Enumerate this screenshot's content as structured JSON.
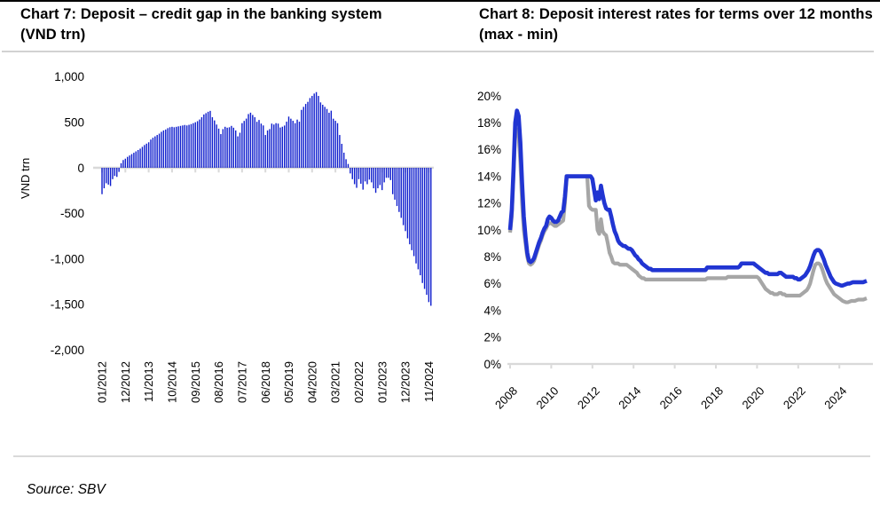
{
  "source": "Source: SBV",
  "colors": {
    "bar_blue": "#0d1ccd",
    "line_max_blue": "#2135d2",
    "line_min_gray": "#a6a6a6",
    "axis_gray": "#d9d9d9",
    "rule_gray": "#d2d2d2"
  },
  "chart_data": [
    {
      "type": "bar",
      "title": "Chart 7: Deposit – credit gap in the banking system (VND trn)",
      "xlabel": "",
      "ylabel": "VND trn",
      "ylim": [
        -2000,
        1000
      ],
      "y_tick_labels": [
        "1,000",
        "500",
        "0",
        "-500",
        "-1,000",
        "-1,500",
        "-2,000"
      ],
      "y_tick_values": [
        1000,
        500,
        0,
        -500,
        -1000,
        -1500,
        -2000
      ],
      "x_tick_labels": [
        "01/2012",
        "12/2012",
        "11/2013",
        "10/2014",
        "09/2015",
        "08/2016",
        "07/2017",
        "06/2018",
        "05/2019",
        "04/2020",
        "03/2021",
        "02/2022",
        "01/2023",
        "12/2023",
        "11/2024"
      ],
      "x_tick_every_months": 11,
      "frequency": "monthly",
      "x_start": "01/2012",
      "x_end": "12/2024",
      "grid": false,
      "values": [
        -290,
        -225,
        -170,
        -185,
        -200,
        -125,
        -90,
        -100,
        -45,
        50,
        85,
        100,
        120,
        135,
        150,
        165,
        180,
        195,
        210,
        230,
        250,
        265,
        280,
        310,
        330,
        345,
        360,
        375,
        395,
        410,
        420,
        435,
        445,
        450,
        445,
        450,
        455,
        460,
        465,
        470,
        465,
        472,
        480,
        490,
        500,
        512,
        530,
        555,
        585,
        600,
        615,
        625,
        555,
        520,
        475,
        430,
        370,
        425,
        450,
        440,
        445,
        460,
        440,
        410,
        345,
        385,
        490,
        515,
        540,
        590,
        605,
        580,
        555,
        505,
        525,
        485,
        465,
        360,
        410,
        425,
        485,
        475,
        490,
        485,
        442,
        451,
        464,
        506,
        562,
        539,
        516,
        490,
        529,
        506,
        636,
        669,
        701,
        724,
        766,
        789,
        815,
        831,
        789,
        718,
        692,
        669,
        646,
        604,
        627,
        539,
        516,
        490,
        360,
        263,
        166,
        94,
        42,
        -62,
        -125,
        -180,
        -220,
        -125,
        -175,
        -240,
        -150,
        -180,
        -130,
        -160,
        -225,
        -275,
        -225,
        -190,
        -245,
        -160,
        -110,
        -110,
        -135,
        -290,
        -350,
        -420,
        -485,
        -550,
        -630,
        -695,
        -775,
        -840,
        -905,
        -970,
        -1050,
        -1115,
        -1180,
        -1265,
        -1330,
        -1395,
        -1475,
        -1515
      ]
    },
    {
      "type": "line",
      "title": "Chart 8: Deposit interest rates for terms over 12 months (max - min)",
      "xlabel": "",
      "ylabel": "",
      "ylim": [
        0,
        20
      ],
      "y_tick_labels": [
        "0%",
        "2%",
        "4%",
        "6%",
        "8%",
        "10%",
        "12%",
        "14%",
        "16%",
        "18%",
        "20%"
      ],
      "y_tick_values": [
        0,
        2,
        4,
        6,
        8,
        10,
        12,
        14,
        16,
        18,
        20
      ],
      "x_tick_labels": [
        "2008",
        "2010",
        "2012",
        "2014",
        "2016",
        "2018",
        "2020",
        "2022",
        "2024"
      ],
      "frequency": "monthly",
      "x_start": "2008-01",
      "x_end": "2025-05",
      "grid": false,
      "legend": "none",
      "series": [
        {
          "name": "min",
          "color": "#a6a6a6",
          "values": [
            9.8,
            11.0,
            14.0,
            17.4,
            17.5,
            17.0,
            15.0,
            12.0,
            10.0,
            9.0,
            8.0,
            7.5,
            7.4,
            7.5,
            7.7,
            8.1,
            8.5,
            8.9,
            9.2,
            9.6,
            9.9,
            10.1,
            10.4,
            10.5,
            10.5,
            10.4,
            10.3,
            10.3,
            10.4,
            10.5,
            10.6,
            10.7,
            12.0,
            14.0,
            14.0,
            14.0,
            14.0,
            14.0,
            14.0,
            14.0,
            14.0,
            14.0,
            14.0,
            14.0,
            14.0,
            14.0,
            11.8,
            11.6,
            11.5,
            11.5,
            11.5,
            10.0,
            9.7,
            10.8,
            9.9,
            9.7,
            9.6,
            9.0,
            8.3,
            8.0,
            7.6,
            7.5,
            7.5,
            7.5,
            7.4,
            7.4,
            7.4,
            7.4,
            7.4,
            7.3,
            7.2,
            7.1,
            7.0,
            6.9,
            6.8,
            6.6,
            6.5,
            6.4,
            6.4,
            6.3,
            6.3,
            6.3,
            6.3,
            6.3,
            6.3,
            6.3,
            6.3,
            6.3,
            6.3,
            6.3,
            6.3,
            6.3,
            6.3,
            6.3,
            6.3,
            6.3,
            6.3,
            6.3,
            6.3,
            6.3,
            6.3,
            6.3,
            6.3,
            6.3,
            6.3,
            6.3,
            6.3,
            6.3,
            6.3,
            6.3,
            6.3,
            6.3,
            6.3,
            6.3,
            6.3,
            6.4,
            6.4,
            6.4,
            6.4,
            6.4,
            6.4,
            6.4,
            6.4,
            6.4,
            6.4,
            6.4,
            6.4,
            6.5,
            6.5,
            6.5,
            6.5,
            6.5,
            6.5,
            6.5,
            6.5,
            6.5,
            6.5,
            6.5,
            6.5,
            6.5,
            6.5,
            6.5,
            6.5,
            6.5,
            6.5,
            6.4,
            6.2,
            6.0,
            5.8,
            5.6,
            5.5,
            5.4,
            5.3,
            5.3,
            5.2,
            5.2,
            5.2,
            5.3,
            5.3,
            5.2,
            5.2,
            5.1,
            5.1,
            5.1,
            5.1,
            5.1,
            5.1,
            5.1,
            5.1,
            5.1,
            5.2,
            5.3,
            5.4,
            5.5,
            5.7,
            6.0,
            6.5,
            7.0,
            7.4,
            7.5,
            7.5,
            7.4,
            7.1,
            6.7,
            6.3,
            6.0,
            5.8,
            5.6,
            5.4,
            5.2,
            5.1,
            5.0,
            4.9,
            4.8,
            4.7,
            4.65,
            4.6,
            4.6,
            4.65,
            4.7,
            4.7,
            4.7,
            4.75,
            4.8,
            4.8,
            4.8,
            4.8,
            4.85,
            4.9
          ]
        },
        {
          "name": "max",
          "color": "#2135d2",
          "values": [
            10.0,
            11.5,
            14.5,
            18.0,
            18.9,
            18.5,
            16.5,
            13.5,
            11.0,
            9.5,
            8.3,
            7.7,
            7.6,
            7.7,
            7.9,
            8.3,
            8.7,
            9.1,
            9.4,
            9.8,
            10.1,
            10.3,
            10.8,
            11.0,
            10.9,
            10.7,
            10.6,
            10.6,
            10.7,
            11.0,
            11.3,
            11.4,
            12.5,
            14.0,
            14.0,
            14.0,
            14.0,
            14.0,
            14.0,
            14.0,
            14.0,
            14.0,
            14.0,
            14.0,
            14.0,
            14.0,
            14.0,
            14.0,
            13.8,
            13.0,
            12.2,
            12.8,
            12.3,
            13.3,
            12.6,
            12.0,
            11.6,
            11.5,
            11.5,
            11.0,
            10.4,
            9.9,
            9.6,
            9.2,
            9.0,
            8.9,
            8.8,
            8.8,
            8.7,
            8.6,
            8.6,
            8.5,
            8.3,
            8.1,
            8.0,
            7.8,
            7.7,
            7.5,
            7.4,
            7.3,
            7.2,
            7.1,
            7.1,
            7.0,
            7.0,
            7.0,
            7.0,
            7.0,
            7.0,
            7.0,
            7.0,
            7.0,
            7.0,
            7.0,
            7.0,
            7.0,
            7.0,
            7.0,
            7.0,
            7.0,
            7.0,
            7.0,
            7.0,
            7.0,
            7.0,
            7.0,
            7.0,
            7.0,
            7.0,
            7.0,
            7.0,
            7.0,
            7.0,
            7.0,
            7.0,
            7.2,
            7.2,
            7.2,
            7.2,
            7.2,
            7.2,
            7.2,
            7.2,
            7.2,
            7.2,
            7.2,
            7.2,
            7.2,
            7.2,
            7.2,
            7.2,
            7.2,
            7.2,
            7.2,
            7.3,
            7.5,
            7.5,
            7.5,
            7.5,
            7.5,
            7.5,
            7.5,
            7.5,
            7.4,
            7.3,
            7.2,
            7.1,
            7.0,
            6.9,
            6.8,
            6.8,
            6.7,
            6.7,
            6.7,
            6.7,
            6.7,
            6.7,
            6.8,
            6.8,
            6.7,
            6.6,
            6.5,
            6.5,
            6.5,
            6.5,
            6.5,
            6.4,
            6.4,
            6.3,
            6.3,
            6.4,
            6.5,
            6.6,
            6.8,
            7.0,
            7.3,
            7.7,
            8.1,
            8.4,
            8.5,
            8.5,
            8.4,
            8.1,
            7.8,
            7.4,
            7.1,
            6.8,
            6.5,
            6.3,
            6.1,
            6.0,
            5.95,
            5.9,
            5.85,
            5.85,
            5.9,
            5.95,
            6.0,
            6.0,
            6.05,
            6.1,
            6.1,
            6.1,
            6.1,
            6.1,
            6.1,
            6.1,
            6.15,
            6.2
          ]
        }
      ]
    }
  ]
}
